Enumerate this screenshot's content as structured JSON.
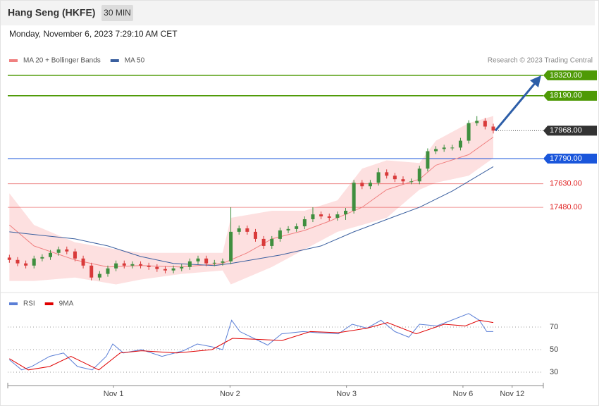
{
  "header": {
    "title": "Hang Seng (HKFE)",
    "timeframe": "30 MIN",
    "timestamp": "Monday, November 6, 2023 7:29:10 AM CET"
  },
  "chart_data": [
    {
      "type": "candlestick",
      "credit": "Research © 2023 Trading Central",
      "open": [
        17160,
        17145,
        17123,
        17109,
        17154,
        17163,
        17190,
        17212,
        17199,
        17154,
        17109,
        17033,
        17056,
        17091,
        17123,
        17109,
        17118,
        17109,
        17100,
        17087,
        17078,
        17091,
        17100,
        17136,
        17154,
        17123,
        17127,
        17136,
        17324,
        17346,
        17324,
        17279,
        17234,
        17279,
        17333,
        17342,
        17359,
        17404,
        17435,
        17422,
        17413,
        17435,
        17458,
        17636,
        17614,
        17636,
        17703,
        17681,
        17659,
        17645,
        17645,
        17726,
        17837,
        17851,
        17860,
        17860,
        17904,
        18016,
        18030,
        17994
      ],
      "high": [
        17178,
        17163,
        17141,
        17172,
        17181,
        17208,
        17230,
        17230,
        17217,
        17172,
        17127,
        17074,
        17109,
        17141,
        17141,
        17136,
        17136,
        17127,
        17118,
        17105,
        17109,
        17118,
        17154,
        17172,
        17172,
        17145,
        17154,
        17480,
        17364,
        17364,
        17342,
        17297,
        17297,
        17351,
        17360,
        17377,
        17422,
        17480,
        17453,
        17440,
        17453,
        17476,
        17654,
        17654,
        17654,
        17730,
        17721,
        17699,
        17677,
        17663,
        17744,
        17855,
        17869,
        17878,
        17878,
        17922,
        18034,
        18060,
        18048,
        18012
      ],
      "low": [
        17127,
        17105,
        17091,
        17091,
        17136,
        17145,
        17172,
        17181,
        17136,
        17091,
        17015,
        17015,
        17038,
        17073,
        17091,
        17091,
        17091,
        17082,
        17069,
        17060,
        17060,
        17073,
        17082,
        17118,
        17105,
        17105,
        17109,
        17118,
        17306,
        17306,
        17261,
        17216,
        17216,
        17261,
        17315,
        17324,
        17341,
        17386,
        17404,
        17395,
        17395,
        17400,
        17440,
        17596,
        17596,
        17618,
        17663,
        17641,
        17627,
        17627,
        17627,
        17708,
        17819,
        17833,
        17842,
        17842,
        17886,
        17998,
        17976,
        17950
      ],
      "close": [
        17145,
        17123,
        17109,
        17154,
        17163,
        17190,
        17212,
        17199,
        17154,
        17109,
        17033,
        17056,
        17091,
        17123,
        17109,
        17118,
        17109,
        17100,
        17087,
        17078,
        17091,
        17100,
        17136,
        17154,
        17123,
        17127,
        17136,
        17324,
        17346,
        17324,
        17279,
        17234,
        17279,
        17333,
        17342,
        17359,
        17404,
        17435,
        17422,
        17413,
        17435,
        17458,
        17636,
        17614,
        17636,
        17703,
        17681,
        17659,
        17645,
        17645,
        17726,
        17837,
        17851,
        17860,
        17860,
        17904,
        18016,
        18030,
        17994,
        17968
      ],
      "up_color": "#3f8f3f",
      "down_color": "#d93a3a",
      "series": [
        {
          "name": "MA 20 + Bollinger Bands",
          "color": "#f08080",
          "band_color": "#fde0e0",
          "x": [
            0,
            3,
            8,
            12,
            16,
            21,
            26,
            29,
            32,
            36,
            39,
            43,
            46,
            50,
            52,
            56,
            59
          ],
          "values": [
            17368,
            17234,
            17145,
            17100,
            17109,
            17100,
            17123,
            17190,
            17279,
            17333,
            17391,
            17480,
            17592,
            17659,
            17748,
            17815,
            17927
          ],
          "band_x": [
            0,
            3,
            8,
            13,
            16,
            21,
            26,
            27,
            32,
            36,
            40,
            43,
            46,
            50,
            52,
            56,
            59
          ],
          "upper": [
            17569,
            17368,
            17257,
            17212,
            17190,
            17190,
            17190,
            17413,
            17458,
            17458,
            17525,
            17726,
            17779,
            17762,
            17904,
            18016,
            18061
          ],
          "lower": [
            17011,
            17011,
            17033,
            16989,
            17020,
            17056,
            17078,
            16989,
            17100,
            17212,
            17324,
            17368,
            17413,
            17592,
            17636,
            17681,
            17793
          ]
        },
        {
          "name": "MA 50",
          "color": "#3a5f9f",
          "x": [
            0,
            4,
            8,
            12,
            16,
            20,
            25,
            27,
            33,
            38,
            42,
            47,
            50,
            54,
            59
          ],
          "values": [
            17324,
            17301,
            17279,
            17234,
            17167,
            17123,
            17109,
            17123,
            17176,
            17234,
            17324,
            17422,
            17480,
            17583,
            17739
          ]
        }
      ],
      "levels": [
        {
          "value": 18320,
          "label": "18320.00",
          "color": "#4e9a06",
          "style": "box"
        },
        {
          "value": 18190,
          "label": "18190.00",
          "color": "#4e9a06",
          "style": "box"
        },
        {
          "value": 17968,
          "label": "17968.00",
          "color": "#333333",
          "style": "dotted"
        },
        {
          "value": 17790,
          "label": "17790.00",
          "color": "#1a56db",
          "style": "box"
        },
        {
          "value": 17630,
          "label": "17630.00",
          "color": "#e02020",
          "style": "text"
        },
        {
          "value": 17480,
          "label": "17480.00",
          "color": "#e02020",
          "style": "text"
        }
      ],
      "xlim": [
        -0.2,
        65.1
      ],
      "ylim": [
        16960,
        18620
      ]
    },
    {
      "type": "line",
      "series": [
        {
          "name": "RSI",
          "color": "#5b7fd6",
          "x": [
            0,
            1.5,
            2.7,
            4.9,
            6.6,
            8.3,
            10.1,
            11.8,
            12.6,
            13.9,
            16.1,
            18.6,
            21.2,
            22.9,
            24.7,
            26,
            27.1,
            28.1,
            29.8,
            31.5,
            33.2,
            35.8,
            37.5,
            40.1,
            41.8,
            43.6,
            45.3,
            47,
            48.7,
            50,
            52.1,
            53.9,
            56,
            57.3,
            58.2,
            59
          ],
          "values": [
            41,
            32,
            35,
            44,
            47,
            35,
            32,
            44,
            55,
            47,
            50,
            44,
            49,
            55,
            52.5,
            50,
            76,
            66,
            60,
            54,
            64,
            66,
            65,
            64,
            72.5,
            69,
            76,
            66,
            61,
            72.5,
            71,
            76,
            82,
            76,
            66,
            66
          ]
        },
        {
          "name": "9MA",
          "color": "#e00000",
          "x": [
            0,
            2.3,
            4.9,
            7.5,
            9.2,
            10.9,
            13.5,
            16.1,
            20.4,
            24.7,
            27.2,
            30.7,
            33.2,
            36.7,
            40.1,
            43.6,
            46.1,
            49.6,
            53,
            55.6,
            57.3,
            59
          ],
          "values": [
            42,
            32,
            35,
            44,
            38,
            32,
            47,
            49,
            47,
            50,
            60,
            59,
            58,
            66,
            65,
            69,
            74,
            64,
            72.5,
            71,
            76,
            74
          ]
        }
      ],
      "xlim": [
        -0.2,
        65.1
      ],
      "ylim": [
        17.5,
        85
      ],
      "yticks": [
        30,
        50,
        70
      ],
      "xticks": [
        {
          "value": 12.7,
          "label": "Nov 1"
        },
        {
          "value": 26.9,
          "label": "Nov 2"
        },
        {
          "value": 41.1,
          "label": "Nov 3"
        },
        {
          "value": 55.3,
          "label": "Nov 6"
        },
        {
          "value": 61.3,
          "label": "Nov 12"
        }
      ]
    }
  ]
}
